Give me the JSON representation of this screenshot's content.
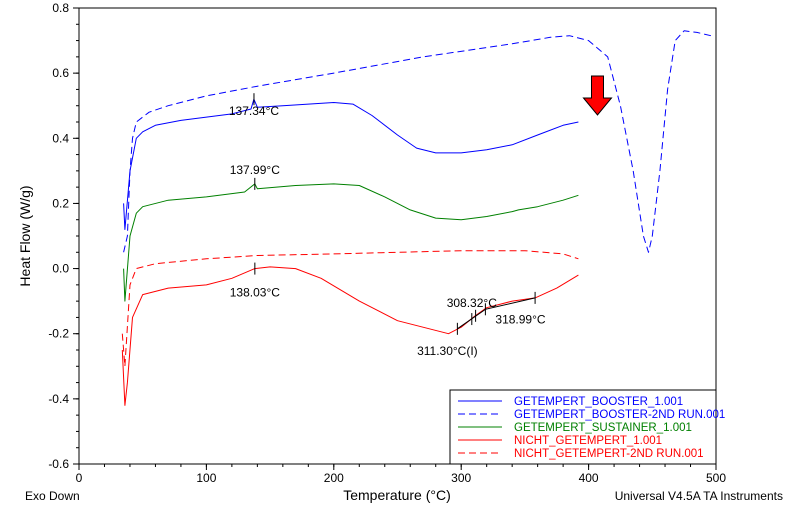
{
  "chart_data": {
    "type": "line",
    "title": "",
    "xlabel": "Temperature (°C)",
    "ylabel": "Heat Flow (W/g)",
    "xlim": [
      0,
      500
    ],
    "ylim": [
      -0.6,
      0.8
    ],
    "xticks": [
      0,
      100,
      200,
      300,
      400,
      500
    ],
    "yticks": [
      -0.6,
      -0.4,
      -0.2,
      0.0,
      0.2,
      0.4,
      0.6,
      0.8
    ],
    "ytick_labels": [
      "-0.6",
      "-0.4",
      "-0.2",
      "0.0",
      "0.2",
      "0.4",
      "0.6",
      "0.8"
    ],
    "corner_left": "Exo Down",
    "corner_right": "Universal V4.5A TA Instruments",
    "legend_position": "bottom-right",
    "series": [
      {
        "name": "GETEMPERT_BOOSTER_1.001",
        "color": "#0000ff",
        "dash": false,
        "x": [
          35,
          36,
          40,
          45,
          50,
          60,
          80,
          100,
          120,
          135,
          137.3,
          140,
          160,
          180,
          200,
          215,
          230,
          250,
          265,
          280,
          300,
          320,
          340,
          360,
          380,
          392
        ],
        "y": [
          0.2,
          0.12,
          0.3,
          0.4,
          0.42,
          0.44,
          0.455,
          0.465,
          0.475,
          0.49,
          0.52,
          0.495,
          0.5,
          0.505,
          0.51,
          0.505,
          0.47,
          0.41,
          0.37,
          0.355,
          0.355,
          0.365,
          0.38,
          0.41,
          0.44,
          0.45
        ]
      },
      {
        "name": "GETEMPERT_BOOSTER-2ND RUN.001",
        "color": "#0000ff",
        "dash": true,
        "x": [
          35,
          38,
          40,
          42,
          45,
          55,
          70,
          100,
          140,
          200,
          270,
          340,
          370,
          385,
          400,
          415,
          425,
          435,
          443,
          447,
          450,
          456,
          462,
          468,
          475,
          485,
          496
        ],
        "y": [
          0.05,
          0.1,
          0.3,
          0.4,
          0.45,
          0.48,
          0.5,
          0.53,
          0.56,
          0.6,
          0.65,
          0.69,
          0.71,
          0.715,
          0.7,
          0.65,
          0.5,
          0.3,
          0.1,
          0.05,
          0.1,
          0.3,
          0.55,
          0.7,
          0.73,
          0.725,
          0.715
        ]
      },
      {
        "name": "GETEMPERT_SUSTAINER_1.001",
        "color": "#008000",
        "dash": false,
        "x": [
          35,
          36,
          40,
          45,
          50,
          70,
          100,
          130,
          137.99,
          140,
          170,
          200,
          220,
          240,
          260,
          280,
          300,
          320,
          340,
          345,
          360,
          380,
          392
        ],
        "y": [
          0.0,
          -0.1,
          0.1,
          0.17,
          0.19,
          0.21,
          0.22,
          0.235,
          0.26,
          0.245,
          0.255,
          0.26,
          0.255,
          0.22,
          0.18,
          0.155,
          0.15,
          0.16,
          0.175,
          0.18,
          0.19,
          0.21,
          0.225
        ]
      },
      {
        "name": "NICHT_GETEMPERT_1.001",
        "color": "#ff0000",
        "dash": false,
        "x": [
          34,
          36,
          38,
          42,
          50,
          70,
          100,
          120,
          138,
          150,
          170,
          190,
          220,
          250,
          270,
          290,
          300,
          311,
          320,
          340,
          358,
          375,
          392
        ],
        "y": [
          -0.25,
          -0.42,
          -0.35,
          -0.15,
          -0.08,
          -0.06,
          -0.05,
          -0.03,
          0.0,
          0.005,
          0.0,
          -0.03,
          -0.1,
          -0.16,
          -0.18,
          -0.2,
          -0.18,
          -0.145,
          -0.12,
          -0.1,
          -0.09,
          -0.06,
          -0.02
        ]
      },
      {
        "name": "NICHT_GETEMPERT-2ND RUN.001",
        "color": "#ff0000",
        "dash": true,
        "x": [
          34,
          36,
          40,
          45,
          60,
          100,
          140,
          200,
          250,
          300,
          350,
          380,
          392
        ],
        "y": [
          -0.2,
          -0.3,
          -0.05,
          0.0,
          0.015,
          0.03,
          0.04,
          0.045,
          0.05,
          0.055,
          0.055,
          0.045,
          0.03
        ]
      }
    ],
    "annotations": [
      {
        "text": "137.34°C",
        "x": 137.34,
        "y": 0.52
      },
      {
        "text": "137.99°C",
        "x": 137.99,
        "y": 0.26
      },
      {
        "text": "138.03°C",
        "x": 138.03,
        "y": 0.0
      },
      {
        "text": "308.32°C",
        "x": 308.32,
        "y": -0.155
      },
      {
        "text": "318.99°C",
        "x": 318.99,
        "y": -0.125
      },
      {
        "text": "311.30°C(I)",
        "x": 297,
        "y": -0.185
      }
    ],
    "arrow": {
      "x": 385,
      "color": "#ff0000"
    }
  }
}
